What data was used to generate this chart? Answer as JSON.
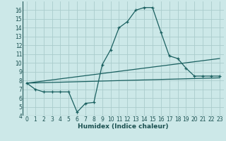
{
  "xlabel": "Humidex (Indice chaleur)",
  "ylabel": "",
  "background_color": "#cce8e8",
  "grid_color": "#aacccc",
  "line_color": "#1a6060",
  "xlim": [
    -0.5,
    23.5
  ],
  "ylim": [
    4,
    17
  ],
  "xticks": [
    0,
    1,
    2,
    3,
    4,
    5,
    6,
    7,
    8,
    9,
    10,
    11,
    12,
    13,
    14,
    15,
    16,
    17,
    18,
    19,
    20,
    21,
    22,
    23
  ],
  "yticks": [
    4,
    5,
    6,
    7,
    8,
    9,
    10,
    11,
    12,
    13,
    14,
    15,
    16
  ],
  "line1_x": [
    0,
    1,
    2,
    3,
    4,
    5,
    6,
    7,
    8,
    9,
    10,
    11,
    12,
    13,
    14,
    15,
    16,
    17,
    18,
    19,
    20,
    21,
    22,
    23
  ],
  "line1_y": [
    7.7,
    7.0,
    6.7,
    6.7,
    6.7,
    6.7,
    4.4,
    5.4,
    5.5,
    9.8,
    11.5,
    14.0,
    14.7,
    16.0,
    16.3,
    16.3,
    13.5,
    10.8,
    10.5,
    9.4,
    8.5,
    8.5,
    8.5,
    8.5
  ],
  "line2_x": [
    0,
    23
  ],
  "line2_y": [
    7.7,
    8.3
  ],
  "line3_x": [
    0,
    23
  ],
  "line3_y": [
    7.7,
    10.5
  ],
  "font_color": "#1a5050",
  "tick_fontsize": 5.5,
  "xlabel_fontsize": 6.5
}
